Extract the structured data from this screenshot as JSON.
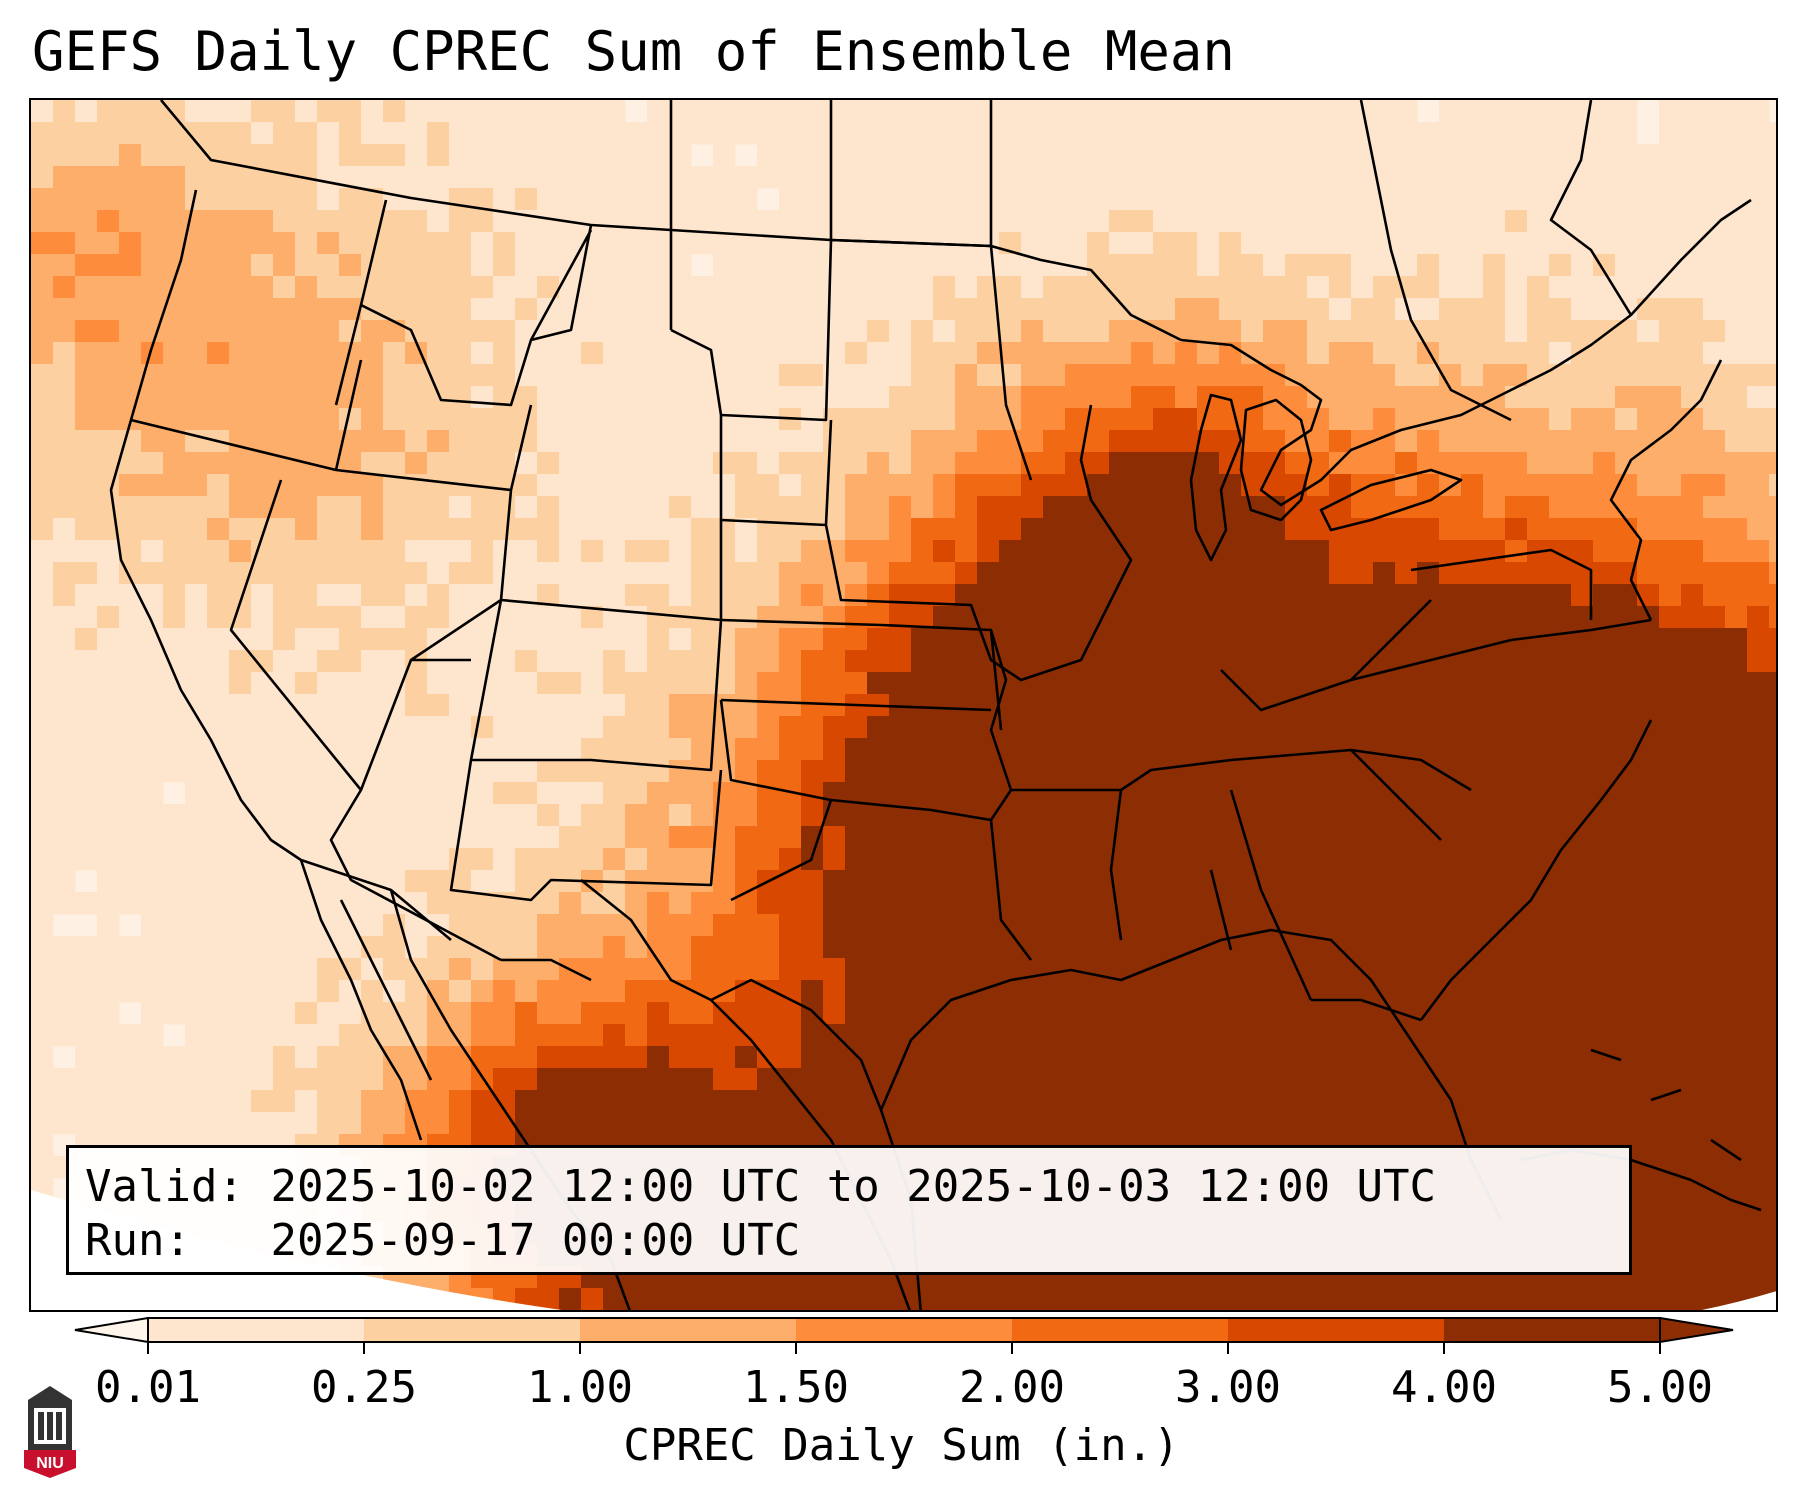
{
  "title": "GEFS Daily CPREC Sum of Ensemble Mean",
  "info": {
    "valid_label": "Valid:",
    "valid_value": "2025-10-02 12:00 UTC to 2025-10-03 12:00 UTC",
    "run_label": "Run:",
    "run_value": "2025-09-17 00:00 UTC"
  },
  "colorbar": {
    "label": "CPREC Daily Sum (in.)",
    "ticks": [
      "0.01",
      "0.25",
      "1.00",
      "1.50",
      "2.00",
      "3.00",
      "4.00",
      "5.00"
    ],
    "colors": [
      "#fff5eb",
      "#fee6ce",
      "#fdd0a2",
      "#fdae6b",
      "#fd8d3c",
      "#f16913",
      "#d94801",
      "#8c2d04"
    ],
    "extend": "both"
  },
  "logo": {
    "text": "NIU",
    "color": "#c8102e"
  },
  "colors": {
    "land_base": "#fef1e4",
    "border": "#000000"
  }
}
